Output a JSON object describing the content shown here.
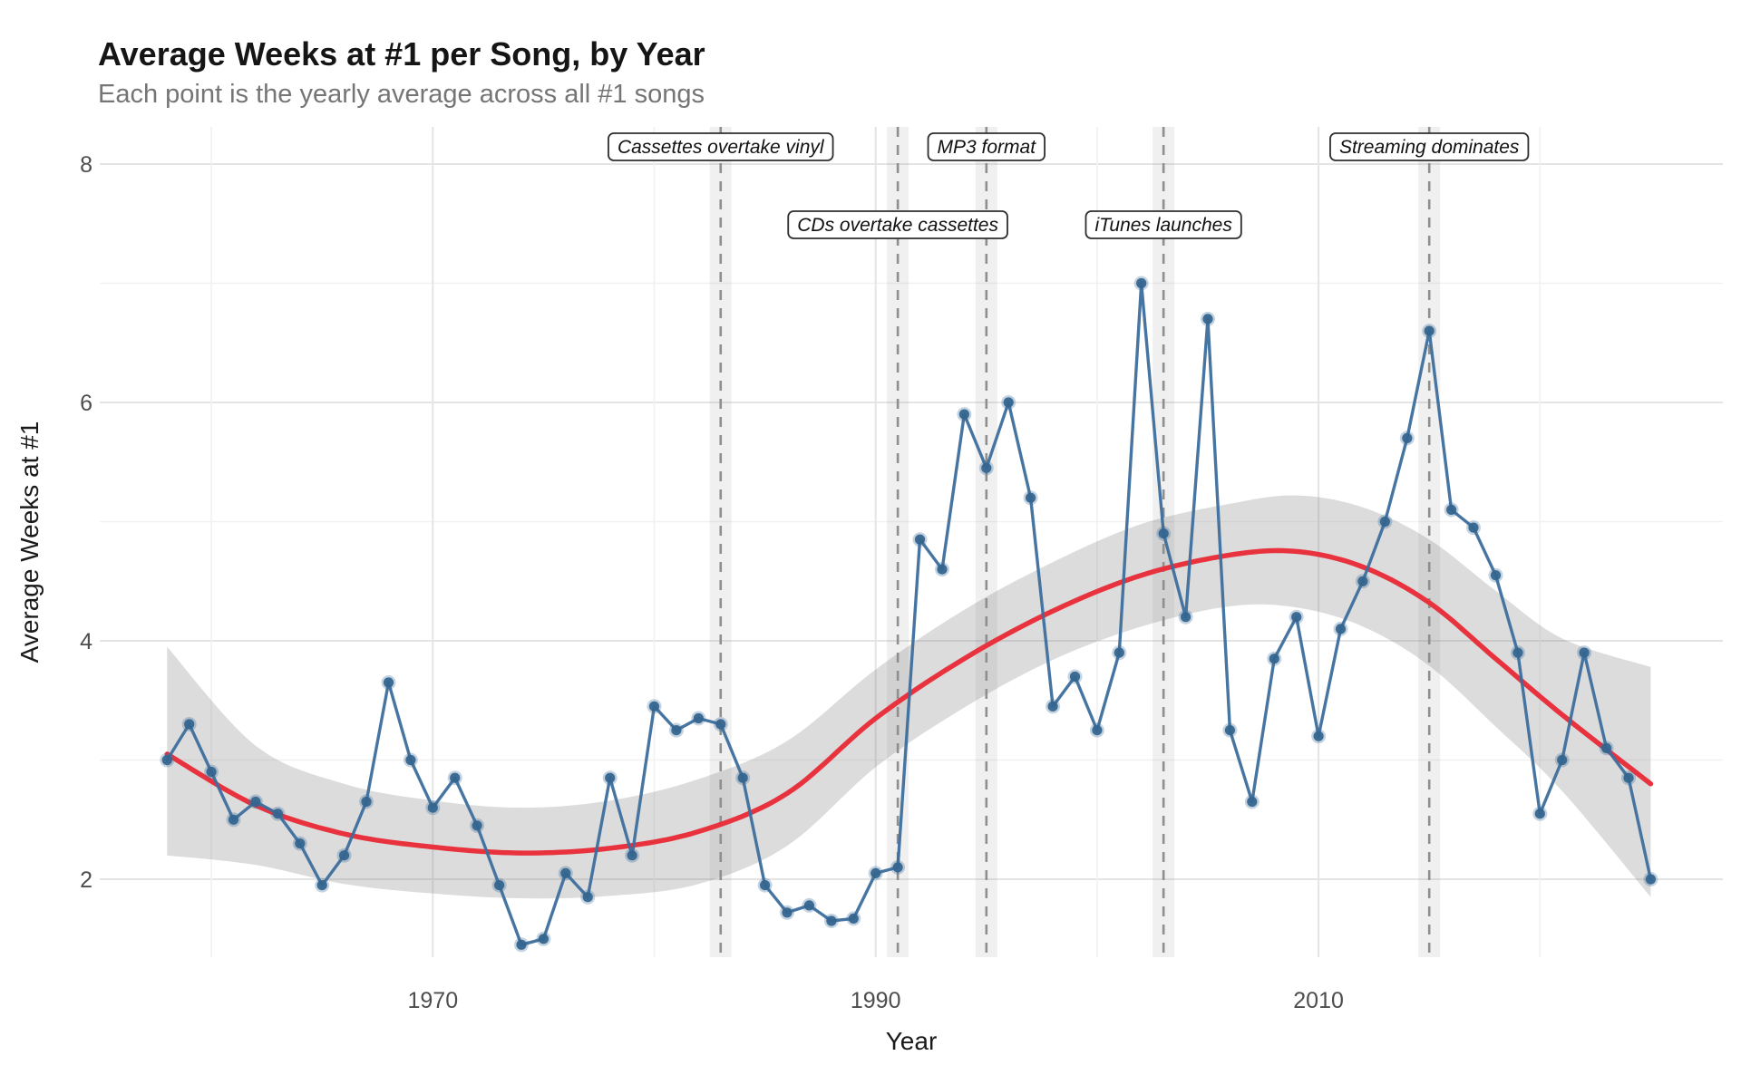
{
  "title": "Average Weeks at #1 per Song, by Year",
  "subtitle": "Each point is the yearly average across all #1 songs",
  "x_axis": {
    "label": "Year",
    "major_ticks": [
      1970,
      1990,
      2010
    ],
    "minor_ticks": [
      1960,
      1980,
      2000,
      2020
    ]
  },
  "y_axis": {
    "label": "Average Weeks at #1",
    "major_ticks": [
      2,
      4,
      6,
      8
    ],
    "minor_ticks": [
      3,
      5,
      7
    ],
    "range": [
      1.3,
      8.1
    ]
  },
  "chart_data": {
    "type": "line",
    "title": "Average Weeks at #1 per Song, by Year",
    "xlabel": "Year",
    "ylabel": "Average Weeks at #1",
    "xlim": [
      1956.5,
      2027
    ],
    "ylim": [
      1.3,
      8.1
    ],
    "grid": true,
    "legend": "none",
    "x": [
      1958,
      1959,
      1960,
      1961,
      1962,
      1963,
      1964,
      1965,
      1966,
      1967,
      1968,
      1969,
      1970,
      1971,
      1972,
      1973,
      1974,
      1975,
      1976,
      1977,
      1978,
      1979,
      1980,
      1981,
      1982,
      1983,
      1984,
      1985,
      1986,
      1987,
      1988,
      1989,
      1990,
      1991,
      1992,
      1993,
      1994,
      1995,
      1996,
      1997,
      1998,
      1999,
      2000,
      2001,
      2002,
      2003,
      2004,
      2005,
      2006,
      2007,
      2008,
      2009,
      2010,
      2011,
      2012,
      2013,
      2014,
      2015,
      2016,
      2017,
      2018,
      2019,
      2020,
      2021,
      2022,
      2023,
      2024,
      2025
    ],
    "series": [
      {
        "name": "yearly-average-weeks-at-1",
        "values": [
          3.0,
          3.3,
          2.9,
          2.5,
          2.65,
          2.55,
          2.3,
          1.95,
          2.2,
          2.65,
          3.65,
          3.0,
          2.6,
          2.85,
          2.45,
          1.95,
          1.45,
          1.5,
          2.05,
          1.85,
          2.85,
          2.2,
          3.45,
          3.25,
          3.35,
          3.3,
          2.85,
          1.95,
          1.72,
          1.78,
          1.65,
          1.67,
          2.05,
          2.1,
          4.85,
          4.6,
          5.9,
          5.45,
          6.0,
          5.2,
          3.45,
          3.7,
          3.25,
          3.9,
          7.0,
          4.9,
          4.2,
          6.7,
          3.25,
          2.65,
          3.85,
          4.2,
          3.2,
          4.1,
          4.5,
          5.0,
          5.7,
          6.6,
          5.1,
          4.95,
          4.55,
          3.9,
          2.55,
          3.0,
          3.9,
          3.1,
          2.85,
          2.0
        ]
      }
    ],
    "trend": {
      "name": "smoothed-trend",
      "x": [
        1958,
        1962,
        1966,
        1970,
        1974,
        1978,
        1982,
        1986,
        1990,
        1994,
        1998,
        2002,
        2006,
        2009,
        2012,
        2015,
        2018,
        2021,
        2025
      ],
      "values": [
        3.05,
        2.62,
        2.38,
        2.27,
        2.22,
        2.26,
        2.4,
        2.72,
        3.35,
        3.85,
        4.25,
        4.55,
        4.72,
        4.75,
        4.62,
        4.32,
        3.85,
        3.38,
        2.8
      ],
      "ci_upper": [
        3.95,
        3.12,
        2.8,
        2.66,
        2.6,
        2.66,
        2.84,
        3.16,
        3.76,
        4.26,
        4.66,
        4.98,
        5.15,
        5.22,
        5.12,
        4.85,
        4.42,
        4.02,
        3.78
      ],
      "ci_lower": [
        2.2,
        2.12,
        1.96,
        1.88,
        1.84,
        1.86,
        1.96,
        2.28,
        2.94,
        3.44,
        3.84,
        4.12,
        4.29,
        4.28,
        4.12,
        3.79,
        3.28,
        2.74,
        1.85
      ]
    },
    "annotations": [
      {
        "year": 1983,
        "label": "Cassettes overtake vinyl",
        "row": 1
      },
      {
        "year": 1991,
        "label": "CDs overtake cassettes",
        "row": 2
      },
      {
        "year": 1995,
        "label": "MP3 format",
        "row": 1
      },
      {
        "year": 2003,
        "label": "iTunes launches",
        "row": 2
      },
      {
        "year": 2015,
        "label": "Streaming dominates",
        "row": 1
      }
    ],
    "colors": {
      "series_blue": "#3D6E9C",
      "point_blue": "#35658F",
      "trend_red": "#E8333F",
      "ci_band_gray": "#7F7F7F",
      "event_line_gray": "#8F8F8F",
      "event_band_gray": "#8C8C8C",
      "grid_major": "#E4E4E4",
      "grid_minor": "#F1F1F1",
      "title_color": "#151515",
      "subtitle_color": "#757575"
    }
  }
}
